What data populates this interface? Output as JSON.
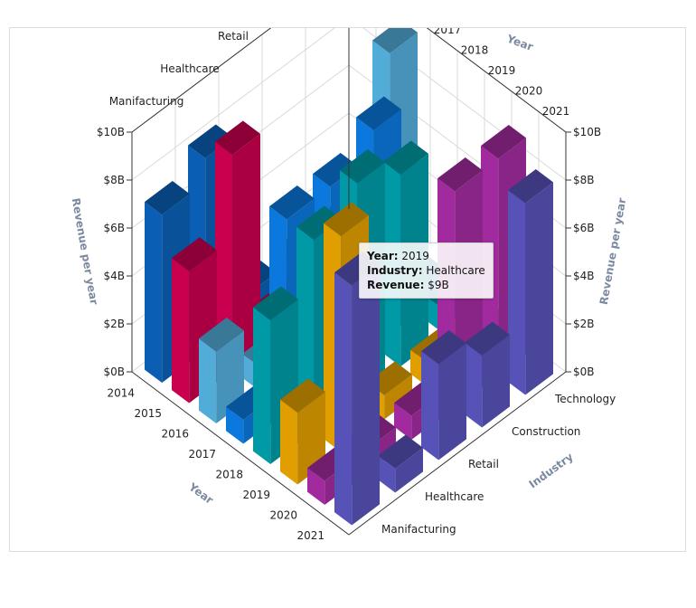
{
  "chart_data": {
    "type": "bar",
    "subtype": "3d-column",
    "x_axis": {
      "title": "Year",
      "categories": [
        "2014",
        "2015",
        "2016",
        "2017",
        "2018",
        "2019",
        "2020",
        "2021"
      ]
    },
    "z_axis": {
      "title": "Industry",
      "categories": [
        "Manifacturing",
        "Healthcare",
        "Retail",
        "Construction",
        "Technology"
      ]
    },
    "y_axis": {
      "title": "Revenue per year",
      "ticks": [
        "$0B",
        "$2B",
        "$4B",
        "$6B",
        "$8B",
        "$10B"
      ],
      "ylim": [
        0,
        10
      ]
    },
    "grid": true,
    "colors": {
      "2014": "#0a5fb4",
      "2015": "#c8004e",
      "2016": "#52acd8",
      "2017": "#0a78dc",
      "2018": "#009aa6",
      "2019": "#e09e00",
      "2020": "#a12b9e",
      "2021": "#5752b8"
    },
    "series": [
      {
        "year": "2014",
        "values": [
          7,
          8,
          1,
          1,
          1
        ]
      },
      {
        "year": "2015",
        "values": [
          5.5,
          9,
          1,
          1,
          1
        ]
      },
      {
        "year": "2016",
        "values": [
          3,
          1,
          1,
          1,
          10
        ]
      },
      {
        "year": "2017",
        "values": [
          1,
          8,
          8,
          9,
          1
        ]
      },
      {
        "year": "2018",
        "values": [
          6,
          8,
          9,
          8,
          1
        ]
      },
      {
        "year": "2019",
        "values": [
          3,
          9,
          1,
          1,
          1
        ]
      },
      {
        "year": "2020",
        "values": [
          1,
          1,
          1,
          9,
          9
        ]
      },
      {
        "year": "2021",
        "values": [
          10,
          1,
          4,
          3,
          8
        ]
      }
    ]
  },
  "tooltip": {
    "year_label": "Year:",
    "year_value": "2019",
    "industry_label": "Industry:",
    "industry_value": "Healthcare",
    "revenue_label": "Revenue:",
    "revenue_value": "$9B"
  }
}
